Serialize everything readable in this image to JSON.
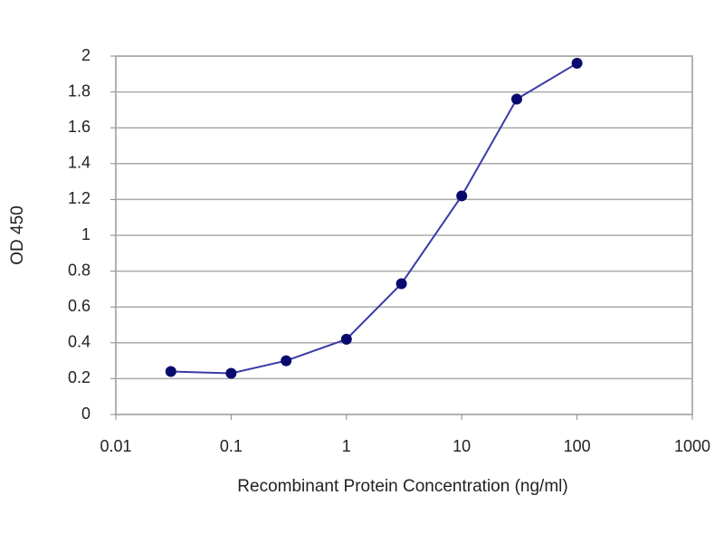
{
  "chart_data": {
    "type": "line",
    "x_label": "Recombinant Protein Concentration (ng/ml)",
    "y_label": "OD 450",
    "x": [
      0.03,
      0.1,
      0.3,
      1,
      3,
      10,
      30,
      100
    ],
    "values": [
      0.24,
      0.23,
      0.3,
      0.42,
      0.73,
      1.22,
      1.76,
      1.96
    ],
    "color": "#3a3aa8",
    "marker_color": "#0a0a6e",
    "xlog": true,
    "xlim": [
      0.01,
      1000
    ],
    "xticks": [
      0.01,
      0.1,
      1,
      10,
      100,
      1000
    ],
    "ylim": [
      0,
      2
    ],
    "yticks": [
      0,
      0.2,
      0.4,
      0.6,
      0.8,
      1,
      1.2,
      1.4,
      1.6,
      1.8,
      2
    ],
    "grid": true
  }
}
